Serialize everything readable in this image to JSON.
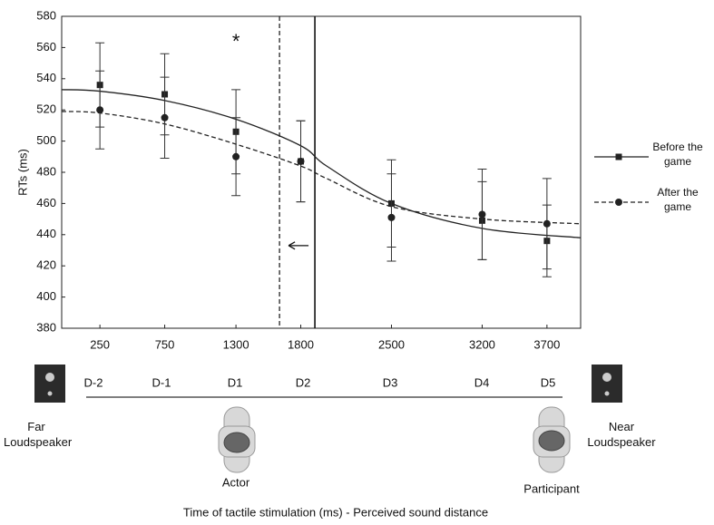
{
  "chart_data": {
    "type": "line",
    "y_label": "RTs (ms)",
    "x_label": "Time of tactile stimulation (ms) - Perceived sound distance",
    "x": [
      250,
      750,
      1300,
      1800,
      2500,
      3200,
      3700
    ],
    "xlim": [
      -45,
      3960
    ],
    "ylim": [
      380,
      580
    ],
    "xticks": [
      250,
      750,
      1300,
      1800,
      2500,
      3200,
      3700
    ],
    "yticks": [
      380,
      400,
      420,
      440,
      460,
      480,
      500,
      520,
      540,
      560,
      580
    ],
    "legend": "right",
    "series": [
      {
        "name": "Before the game",
        "color": "#222222",
        "line_style": "solid",
        "marker": "square",
        "values": [
          536,
          530,
          506,
          487,
          460,
          449,
          436
        ],
        "errors": [
          27,
          26,
          27,
          26,
          28,
          25,
          23
        ],
        "fit_x": [
          -45,
          250,
          750,
          1300,
          1800,
          2000,
          2500,
          3200,
          3960
        ],
        "fit_values": [
          533,
          532,
          526,
          514,
          497,
          484,
          460,
          444,
          438
        ]
      },
      {
        "name": "After the game",
        "color": "#222222",
        "line_style": "dashed",
        "marker": "circle",
        "values": [
          520,
          515,
          490,
          487,
          451,
          453,
          447
        ],
        "errors": [
          25,
          26,
          25,
          26,
          28,
          29,
          29
        ],
        "fit_x": [
          -45,
          250,
          750,
          1300,
          1800,
          2000,
          2500,
          3200,
          3960
        ],
        "fit_values": [
          519,
          518,
          511,
          498,
          484,
          476,
          458,
          450,
          447
        ]
      }
    ],
    "vertical_lines": [
      {
        "x": 1636,
        "style": "dashed"
      },
      {
        "x": 1909,
        "style": "solid"
      }
    ],
    "arrow": {
      "from": 1860,
      "to": 1706,
      "y": 433
    },
    "annotation": {
      "text": "*",
      "x": 1300,
      "y": 563
    }
  },
  "diagram": {
    "distances": [
      "D-2",
      "D-1",
      "D1",
      "D2",
      "D3",
      "D4",
      "D5"
    ],
    "far_speaker": "Far Loudspeaker",
    "near_speaker": "Near Loudspeaker",
    "actor": "Actor",
    "participant": "Participant"
  }
}
